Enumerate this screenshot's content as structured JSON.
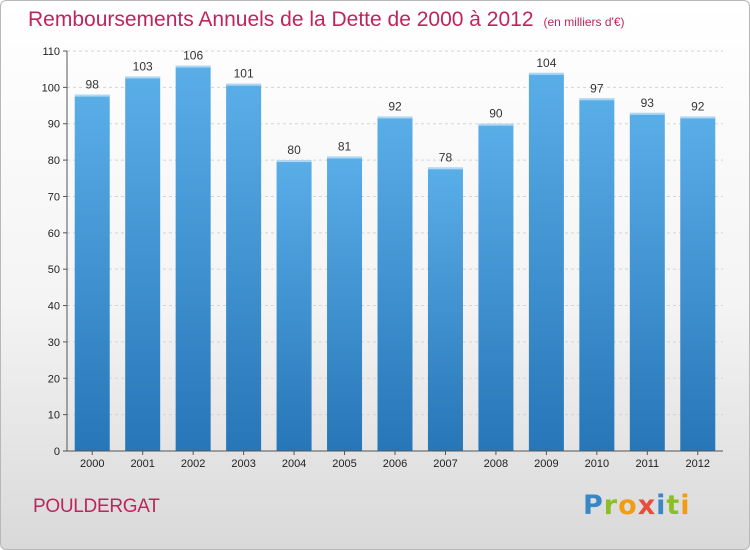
{
  "title": "Remboursements Annuels de la Dette de 2000 à 2012",
  "unit": "(en milliers d'€)",
  "commune": "POULDERGAT",
  "logo": {
    "letters": [
      {
        "ch": "P",
        "color": "#3a87c8"
      },
      {
        "ch": "r",
        "color": "#8cbf26"
      },
      {
        "ch": "o",
        "color": "#f39c12"
      },
      {
        "ch": "x",
        "color": "#e74c3c"
      },
      {
        "ch": "i",
        "color": "#3a87c8"
      },
      {
        "ch": "t",
        "color": "#8cbf26"
      },
      {
        "ch": "i",
        "color": "#f39c12"
      }
    ]
  },
  "chart_data": {
    "type": "bar",
    "categories": [
      "2000",
      "2001",
      "2002",
      "2003",
      "2004",
      "2005",
      "2006",
      "2007",
      "2008",
      "2009",
      "2010",
      "2011",
      "2012"
    ],
    "values": [
      98,
      103,
      106,
      101,
      80,
      81,
      92,
      78,
      90,
      104,
      97,
      93,
      92
    ],
    "ylim": [
      0,
      110
    ],
    "yticks": [
      0,
      10,
      20,
      30,
      40,
      50,
      60,
      70,
      80,
      90,
      100,
      110
    ],
    "grid": true,
    "bar_color_top": "#5aaee8",
    "bar_color_bottom": "#2776b8"
  }
}
